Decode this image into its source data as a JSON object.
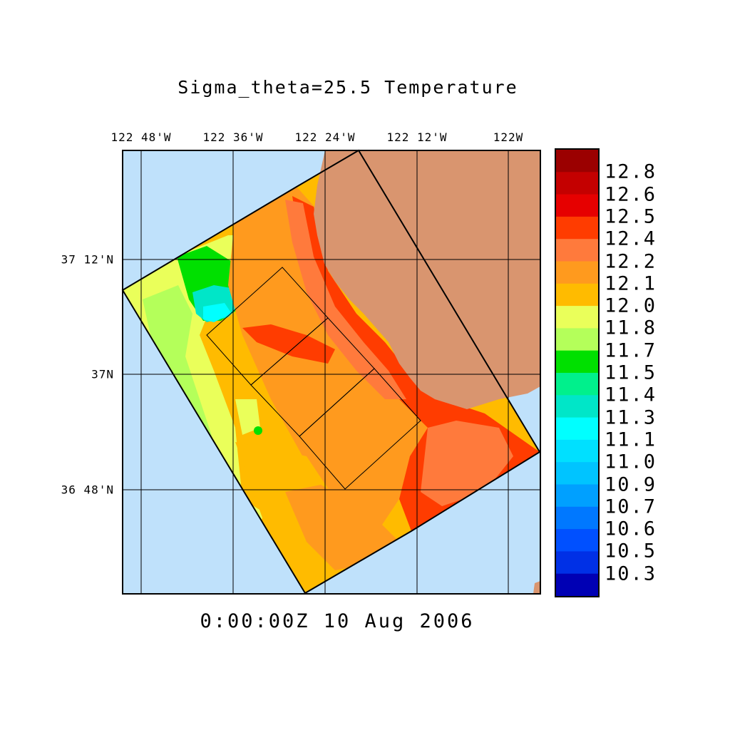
{
  "title": "Sigma_theta=25.5 Temperature",
  "timestamp": "0:00:00Z  10 Aug 2006",
  "longitude_labels": [
    "122 48'W",
    "122 36'W",
    "122 24'W",
    "122 12'W",
    "122W"
  ],
  "latitude_labels": [
    "37 12'N",
    "37N",
    "36 48'N"
  ],
  "colorbar": {
    "labels": [
      "12.8",
      "12.6",
      "12.5",
      "12.4",
      "12.2",
      "12.1",
      "12.0",
      "11.8",
      "11.7",
      "11.5",
      "11.4",
      "11.3",
      "11.1",
      "11.0",
      "10.9",
      "10.7",
      "10.6",
      "10.5",
      "10.3"
    ],
    "colors_top_to_bottom": [
      "#9b0000",
      "#c40000",
      "#e60000",
      "#ff3c00",
      "#ff7a3c",
      "#ff9a1e",
      "#ffbb00",
      "#eaff5a",
      "#b4ff5a",
      "#00e000",
      "#00f08c",
      "#00e6c8",
      "#00ffff",
      "#00e0ff",
      "#00c4ff",
      "#00a0ff",
      "#0078ff",
      "#0050ff",
      "#0030e6",
      "#0000b4"
    ]
  },
  "map_colors": {
    "ocean": "#bfe1fb",
    "land": "#d9956f",
    "water_bg": "#ffbb00"
  }
}
